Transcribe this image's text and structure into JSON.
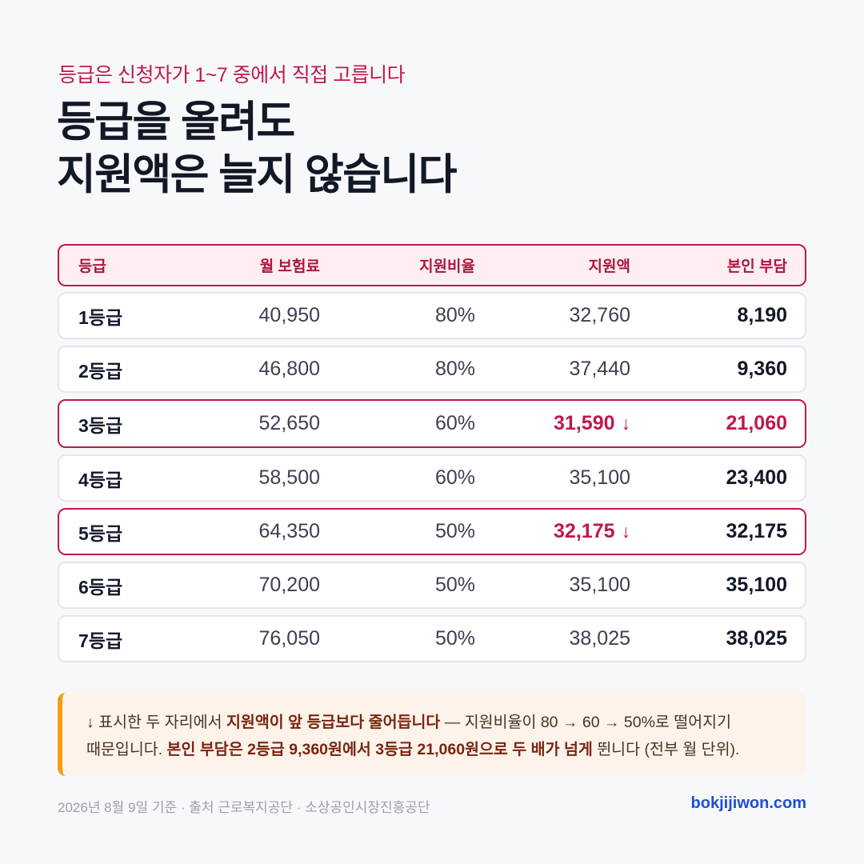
{
  "header": {
    "eyebrow": "등급은 신청자가 1~7 중에서 직접 고릅니다",
    "title_line1": "등급을 올려도",
    "title_line2": "지원액은 늘지 않습니다"
  },
  "table": {
    "columns": [
      "등급",
      "월 보험료",
      "지원비율",
      "지원액",
      "본인 부담"
    ],
    "rows": [
      {
        "grade": "1등급",
        "premium": "40,950",
        "rate": "80%",
        "support": "32,760",
        "burden": "8,190"
      },
      {
        "grade": "2등급",
        "premium": "46,800",
        "rate": "80%",
        "support": "37,440",
        "burden": "9,360"
      },
      {
        "grade": "3등급",
        "premium": "52,650",
        "rate": "60%",
        "support": "31,590",
        "support_arrow": "↓",
        "burden": "21,060"
      },
      {
        "grade": "4등급",
        "premium": "58,500",
        "rate": "60%",
        "support": "35,100",
        "burden": "23,400"
      },
      {
        "grade": "5등급",
        "premium": "64,350",
        "rate": "50%",
        "support": "32,175",
        "support_arrow": "↓",
        "burden": "32,175"
      },
      {
        "grade": "6등급",
        "premium": "70,200",
        "rate": "50%",
        "support": "35,100",
        "burden": "35,100"
      },
      {
        "grade": "7등급",
        "premium": "76,050",
        "rate": "50%",
        "support": "38,025",
        "burden": "38,025"
      }
    ]
  },
  "note": {
    "p1": "↓ 표시한 두 자리에서 ",
    "b1": "지원액이 앞 등급보다 줄어듭니다",
    "p2": " — 지원비율이 80 → 60 → 50%로 떨어지기",
    "p3": "때문입니다. ",
    "b2": "본인 부담은 2등급 9,360원에서 3등급 21,060원으로 두 배가 넘게",
    "p4": " 뛴니다 (전부 월 단위)."
  },
  "footer": {
    "source": "2026년 8월 9일 기준 · 출처 근로복지공단 · 소상공인시장진흥공단",
    "site": "bokjijiwon.com"
  },
  "colors": {
    "accent": "#c0184a",
    "note_bar": "#f59e0b",
    "link": "#1d4ed8"
  }
}
